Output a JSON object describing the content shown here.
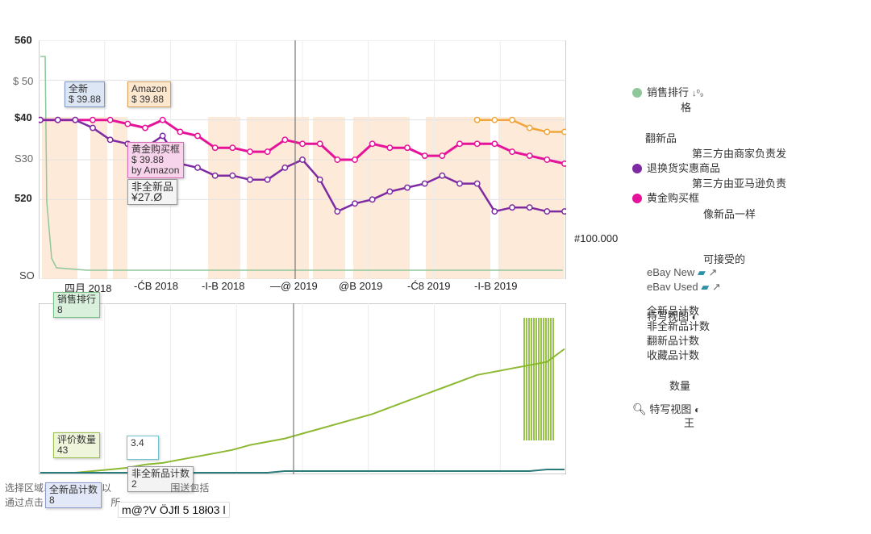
{
  "chart_data": [
    {
      "type": "line",
      "y_ticks": [
        "560",
        "$ 50",
        "$40",
        "S30",
        "520",
        "SO"
      ],
      "y_tick_values": [
        60,
        50,
        40,
        30,
        20,
        0
      ],
      "ylim": [
        0,
        60
      ],
      "x_ticks": [
        "四月 2018",
        "-ĆB 2018",
        "-I-B 2018",
        "—@ 2019",
        "@B 2019",
        "-Ć8  2019",
        "-I-B 2019"
      ],
      "x": [
        0,
        1,
        2,
        3,
        4,
        5,
        6,
        7,
        8,
        9,
        10,
        11,
        12,
        13,
        14,
        15,
        16,
        17,
        18,
        19,
        20,
        21,
        22,
        23,
        24,
        25,
        26,
        27,
        28,
        29,
        30
      ],
      "series": [
        {
          "name": "黄金购买框",
          "color": "#e6139a",
          "values": [
            40,
            40,
            40,
            40,
            40,
            39,
            38,
            40,
            37,
            36,
            33,
            33,
            32,
            32,
            35,
            34,
            34,
            30,
            30,
            34,
            33,
            33,
            31,
            31,
            34,
            34,
            34,
            32,
            31,
            30,
            29
          ]
        },
        {
          "name": "退换货实惠商品",
          "color": "#7d2aa3",
          "values": [
            40,
            40,
            40,
            38,
            35,
            34,
            33,
            36,
            29,
            28,
            26,
            26,
            25,
            25,
            28,
            30,
            25,
            17,
            19,
            20,
            22,
            23,
            24,
            26,
            24,
            24,
            17,
            18,
            18,
            17,
            17
          ]
        },
        {
          "name": "Amazon",
          "color": "#f0a63c",
          "values": [
            null,
            null,
            null,
            null,
            null,
            null,
            null,
            null,
            null,
            null,
            null,
            null,
            null,
            null,
            null,
            null,
            null,
            null,
            null,
            null,
            null,
            null,
            null,
            null,
            null,
            40,
            40,
            40,
            38,
            37,
            37
          ]
        }
      ],
      "right_label": "#100.000",
      "tooltips": [
        {
          "title": "全新",
          "value": "$ 39.88"
        },
        {
          "title": "Amazon",
          "value": "$ 39.88"
        },
        {
          "title": "黄金购买框",
          "value": "$ 39.88",
          "by": "by Amazon"
        },
        {
          "title": "非全新品",
          "value": "¥27.Ø"
        }
      ]
    },
    {
      "type": "line",
      "series": [
        {
          "name": "评价数量",
          "color": "#8cb832",
          "values": [
            0,
            0,
            0,
            1,
            2,
            3,
            5,
            6,
            8,
            10,
            12,
            14,
            17,
            19,
            21,
            24,
            27,
            30,
            33,
            36,
            40,
            44,
            48,
            52,
            56,
            60,
            62,
            64,
            66,
            68,
            76
          ]
        },
        {
          "name": "全新品计数",
          "color": "#2a7a7a",
          "values": [
            0,
            0,
            0,
            0,
            0,
            0,
            0,
            0,
            0,
            0,
            0,
            0,
            0,
            0,
            1,
            1,
            1,
            1,
            1,
            1,
            1,
            1,
            1,
            1,
            1,
            1,
            1,
            1,
            1,
            2,
            2
          ]
        }
      ],
      "tooltips": [
        {
          "title": "销售排行",
          "value": "8"
        },
        {
          "title": "评价数量",
          "value": "43"
        },
        {
          "title": "",
          "value": "3.4"
        },
        {
          "title": "非全新品计数",
          "value": "2"
        },
        {
          "title": "全新品计数",
          "value": "8"
        }
      ]
    }
  ],
  "legend": {
    "sales_rank": "销售排行",
    "sales_rank_sub": "格",
    "refurbished": "翻新品",
    "third_party_fbm": "第三方由商家负责发",
    "warehouse_deals": "退换货实惠商品",
    "third_party_fba": "第三方由亚马逊负责",
    "buy_box": "黄金购买框",
    "like_new": "像新品一样",
    "acceptable": "可接受的",
    "ebay_new": "eBay New",
    "ebay_used": "eBav Used",
    "new_count_overlay": "全新品计数",
    "special_view": "特写视图",
    "used_count": "非全新品计数",
    "refurb_count": "翻新品计数",
    "collectible_count": "收藏品计数",
    "quantity": "数量",
    "closeup_view": "特写视图",
    "closeup_sub": "王",
    "colors": {
      "sales_rank": "#8fc79a",
      "warehouse_deals": "#7d2aa3",
      "buy_box": "#e6139a"
    },
    "icons": [
      "sort-icon",
      "truck-icon",
      "external-link-icon",
      "search-icon",
      "toggle-icon"
    ]
  },
  "footer": {
    "hint_line1": "选择区域以放大。再击以",
    "hint_line1_end": "围送包括",
    "hint_line2": "通过点击",
    "hint_line2_end": "所",
    "garbled": "m@?V ÖJfl 5 18ł03 l"
  }
}
